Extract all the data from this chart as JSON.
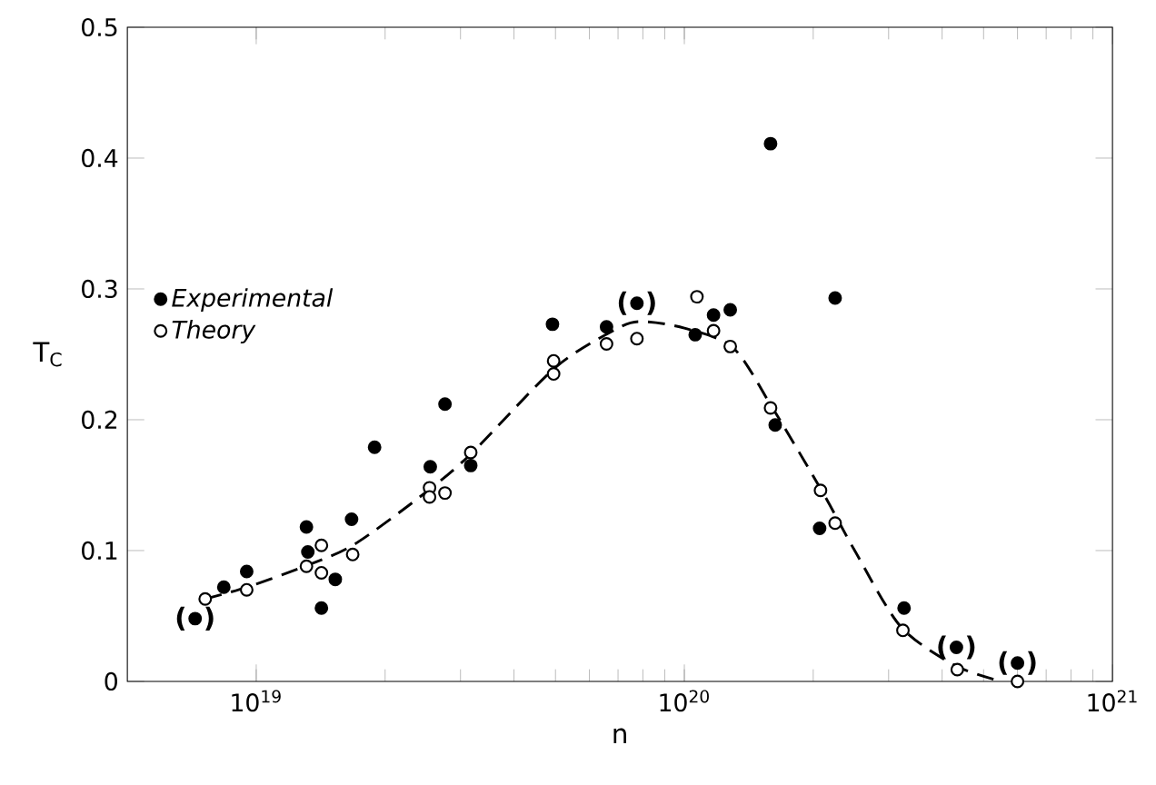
{
  "chart_data": {
    "type": "scatter",
    "xlabel": "n",
    "ylabel": "T$_{C}$",
    "log": "x",
    "legend": "left",
    "xlim": [
      5e+18,
      1e+21
    ],
    "ylim": [
      0,
      0.5
    ],
    "xticks": [
      {
        "value": 1e+19,
        "label": "10$^{19}$"
      },
      {
        "value": 1e+20,
        "label": "10$^{20}$"
      },
      {
        "value": 1e+21,
        "label": "10$^{21}$"
      }
    ],
    "yticks": [
      0,
      0.1,
      0.2,
      0.3,
      0.4,
      0.5
    ],
    "series": [
      {
        "type": "line",
        "color": "#000000",
        "marker": "none",
        "line_style": "dashed",
        "x": [
          7.6e+18,
          9.5e+18,
          1.3e+19,
          1.7e+19,
          2.5e+19,
          3.2e+19,
          5e+19,
          7e+19,
          8e+19,
          1e+20,
          1.3e+20,
          1.6e+20,
          2.1e+20,
          2.5e+20,
          3.2e+20,
          4.3e+20,
          5.5e+20
        ],
        "values": [
          0.063,
          0.072,
          0.088,
          0.105,
          0.145,
          0.175,
          0.24,
          0.27,
          0.275,
          0.27,
          0.255,
          0.21,
          0.145,
          0.1,
          0.042,
          0.012,
          0.0
        ]
      },
      {
        "name": "Experimental",
        "color": "#000000",
        "marker": "circle",
        "x": [
          7.2e+18,
          8.4e+18,
          9.5e+18,
          1.31e+19,
          1.32e+19,
          1.42e+19,
          1.53e+19,
          1.67e+19,
          1.89e+19,
          2.55e+19,
          2.76e+19,
          3.17e+19,
          4.92e+19,
          6.58e+19,
          7.75e+19,
          1.06e+20,
          1.17e+20,
          1.28e+20,
          1.63e+20,
          1.59e+20,
          2.25e+20,
          2.07e+20,
          3.26e+20,
          4.32e+20,
          6e+20
        ],
        "values": [
          0.048,
          0.072,
          0.084,
          0.118,
          0.099,
          0.056,
          0.078,
          0.124,
          0.179,
          0.164,
          0.212,
          0.165,
          0.273,
          0.271,
          0.289,
          0.265,
          0.28,
          0.284,
          0.196,
          0.411,
          0.293,
          0.117,
          0.056,
          0.026,
          0.014
        ]
      },
      {
        "name": "Theory",
        "color": "#ffffff",
        "marker": "circle",
        "x": [
          7.6e+18,
          9.5e+18,
          1.31e+19,
          1.42e+19,
          1.42e+19,
          1.68e+19,
          2.54e+19,
          2.54e+19,
          2.76e+19,
          3.17e+19,
          4.95e+19,
          4.95e+19,
          6.58e+19,
          7.75e+19,
          1.07e+20,
          1.17e+20,
          1.28e+20,
          1.59e+20,
          2.08e+20,
          2.25e+20,
          3.24e+20,
          4.34e+20,
          6e+20
        ],
        "values": [
          0.063,
          0.07,
          0.088,
          0.104,
          0.083,
          0.097,
          0.148,
          0.141,
          0.144,
          0.175,
          0.245,
          0.235,
          0.258,
          0.262,
          0.294,
          0.268,
          0.256,
          0.209,
          0.146,
          0.121,
          0.039,
          0.009,
          0.0
        ]
      }
    ],
    "annotations": [
      {
        "text": "( )",
        "x": 7.2e+18,
        "y": 0.048
      },
      {
        "text": "( )",
        "x": 7.75e+19,
        "y": 0.289
      },
      {
        "text": "( )",
        "x": 4.32e+20,
        "y": 0.026
      },
      {
        "text": "( )",
        "x": 6e+20,
        "y": 0.014
      }
    ]
  }
}
